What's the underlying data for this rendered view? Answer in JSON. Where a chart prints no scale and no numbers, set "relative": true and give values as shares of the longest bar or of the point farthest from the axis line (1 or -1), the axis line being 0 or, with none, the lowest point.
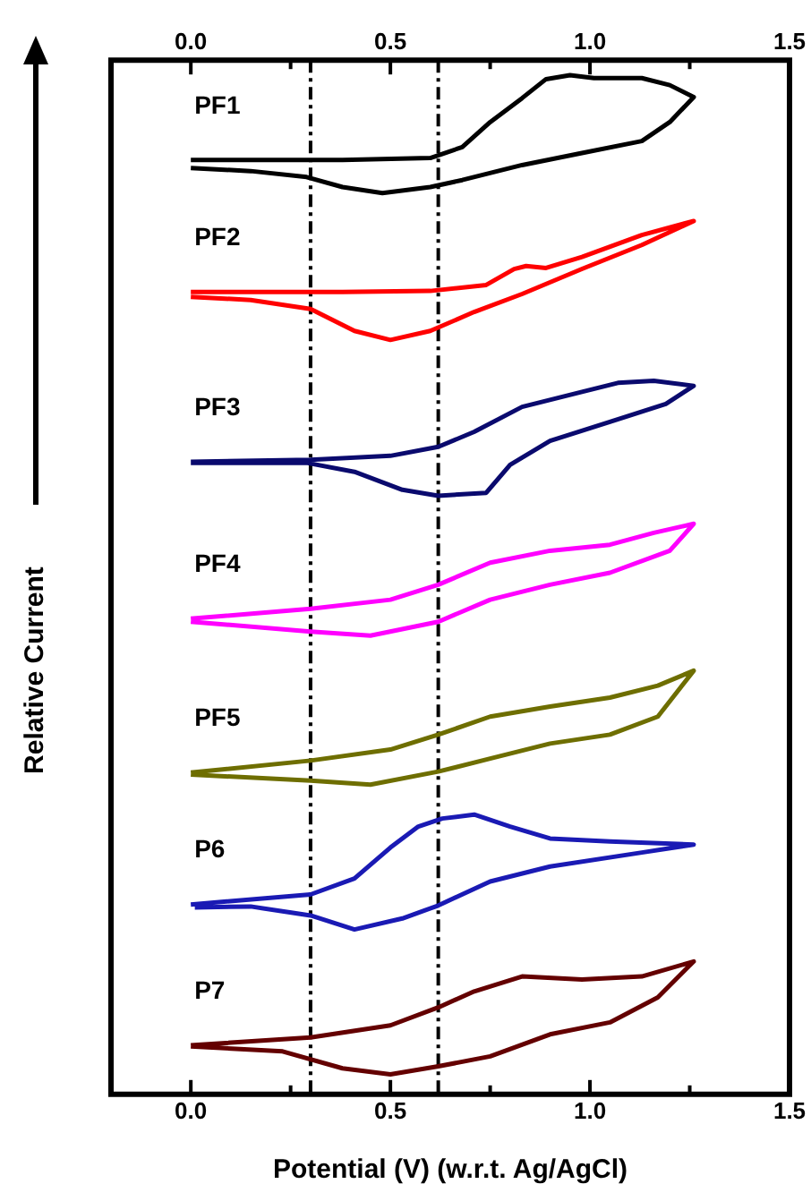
{
  "chart_data": {
    "type": "line",
    "relative": true,
    "xlabel": "Potential (V) (w.r.t. Ag/AgCl)",
    "ylabel": "Relative Current",
    "marker": "none",
    "xlim": [
      -0.2,
      1.5
    ],
    "xticks": [
      {
        "value": 0,
        "label": "0.0"
      },
      {
        "value": 0.25,
        "label": null
      },
      0.5,
      {
        "value": 0.75,
        "label": null
      },
      {
        "value": 1,
        "label": "1.0"
      },
      {
        "value": 1.25,
        "label": null
      },
      1.5
    ],
    "x2lim": [
      -0.2,
      1.5
    ],
    "x2ticks": [
      {
        "value": 0,
        "label": "0.0"
      },
      {
        "value": 0.25,
        "label": null
      },
      0.5,
      {
        "value": 0.75,
        "label": null
      },
      {
        "value": 1,
        "label": "1.0"
      },
      {
        "value": 1.25,
        "label": null
      },
      1.5
    ],
    "ref_lines": [
      {
        "axis": "x",
        "value": 0.3,
        "color": "#000000",
        "line_style": "dashed"
      },
      {
        "axis": "x",
        "value": 0.62,
        "color": "#000000",
        "line_style": "dashed"
      }
    ],
    "series": [
      {
        "name": "PF1",
        "color": "#000000",
        "x": [
          0,
          0.38,
          0.6,
          0.68,
          0.75,
          0.83,
          0.89,
          0.95,
          1.01,
          1.13,
          1.2,
          1.26,
          1.2,
          1.13,
          0.98,
          0.83,
          0.68,
          0.6,
          0.48,
          0.38,
          0.29,
          0.15,
          0
        ],
        "values": [
          0.915,
          0.915,
          0.917,
          0.928,
          0.953,
          0.977,
          0.996,
          1,
          0.997,
          0.997,
          0.99,
          0.978,
          0.953,
          0.934,
          0.922,
          0.91,
          0.895,
          0.888,
          0.882,
          0.888,
          0.898,
          0.904,
          0.907
        ]
      },
      {
        "name": "PF2",
        "color": "#ff0000",
        "x": [
          0,
          0.38,
          0.6,
          0.74,
          0.81,
          0.84,
          0.89,
          0.98,
          1.13,
          1.26,
          1.13,
          0.98,
          0.83,
          0.71,
          0.6,
          0.5,
          0.41,
          0.3,
          0.15,
          0
        ],
        "values": [
          0.783,
          0.783,
          0.784,
          0.79,
          0.806,
          0.809,
          0.807,
          0.818,
          0.84,
          0.854,
          0.83,
          0.806,
          0.781,
          0.763,
          0.744,
          0.735,
          0.744,
          0.766,
          0.775,
          0.778
        ]
      },
      {
        "name": "PF3",
        "color": "#0a0a6e",
        "x": [
          0,
          0.3,
          0.5,
          0.62,
          0.71,
          0.83,
          0.98,
          1.07,
          1.16,
          1.26,
          1.19,
          1.05,
          0.9,
          0.8,
          0.74,
          0.62,
          0.53,
          0.41,
          0.29,
          0
        ],
        "values": [
          0.613,
          0.615,
          0.619,
          0.628,
          0.643,
          0.668,
          0.683,
          0.692,
          0.694,
          0.689,
          0.671,
          0.653,
          0.634,
          0.61,
          0.582,
          0.579,
          0.585,
          0.603,
          0.612,
          0.612
        ]
      },
      {
        "name": "PF4",
        "color": "#ff00ff",
        "x": [
          0,
          0.3,
          0.5,
          0.62,
          0.75,
          0.9,
          1.05,
          1.16,
          1.26,
          1.2,
          1.05,
          0.9,
          0.75,
          0.62,
          0.45,
          0.3,
          0
        ],
        "values": [
          0.456,
          0.466,
          0.475,
          0.49,
          0.512,
          0.524,
          0.53,
          0.542,
          0.551,
          0.524,
          0.502,
          0.49,
          0.475,
          0.453,
          0.439,
          0.443,
          0.453
        ]
      },
      {
        "name": "PF5",
        "color": "#6e6e00",
        "x": [
          0,
          0.3,
          0.5,
          0.62,
          0.75,
          0.9,
          1.05,
          1.17,
          1.26,
          1.17,
          1.05,
          0.9,
          0.75,
          0.62,
          0.45,
          0.3,
          0
        ],
        "values": [
          0.302,
          0.314,
          0.325,
          0.34,
          0.358,
          0.368,
          0.377,
          0.389,
          0.404,
          0.358,
          0.34,
          0.331,
          0.316,
          0.303,
          0.29,
          0.294,
          0.3
        ]
      },
      {
        "name": "P6",
        "color": "#1a1ab4",
        "x": [
          0,
          0.3,
          0.41,
          0.5,
          0.57,
          0.63,
          0.71,
          0.8,
          0.9,
          1.05,
          1.26,
          1.13,
          0.9,
          0.75,
          0.62,
          0.53,
          0.41,
          0.3,
          0.15,
          0.01
        ],
        "values": [
          0.17,
          0.18,
          0.196,
          0.227,
          0.248,
          0.256,
          0.26,
          0.248,
          0.236,
          0.233,
          0.23,
          0.222,
          0.208,
          0.193,
          0.169,
          0.156,
          0.145,
          0.159,
          0.168,
          0.167
        ]
      },
      {
        "name": "P7",
        "color": "#640000",
        "x": [
          0,
          0.3,
          0.5,
          0.62,
          0.71,
          0.83,
          0.98,
          1.13,
          1.26,
          1.17,
          1.05,
          0.9,
          0.75,
          0.62,
          0.5,
          0.38,
          0.23,
          0
        ],
        "values": [
          0.029,
          0.037,
          0.049,
          0.067,
          0.083,
          0.098,
          0.095,
          0.098,
          0.113,
          0.077,
          0.052,
          0.04,
          0.018,
          0.008,
          0,
          0.006,
          0.023,
          0.028
        ]
      }
    ]
  }
}
